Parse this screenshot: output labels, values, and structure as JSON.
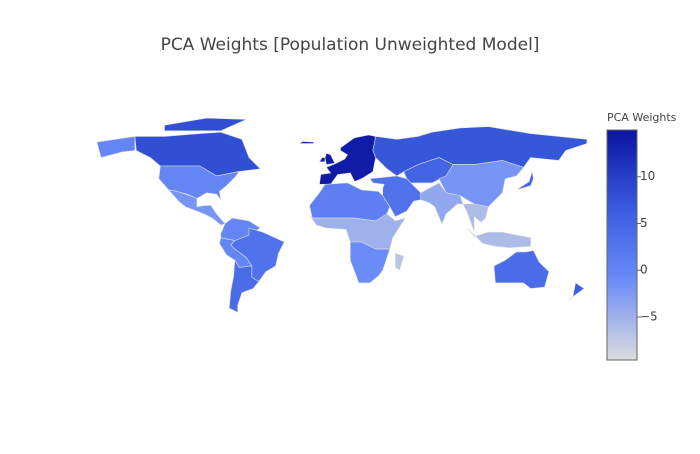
{
  "chart_data": {
    "type": "choropleth",
    "title": "PCA Weights [Population Unweighted Model]",
    "colorbar_title": "PCA Weights",
    "values": [
      8,
      8,
      0,
      0,
      -2,
      0,
      3,
      0,
      4,
      14,
      14,
      14,
      13,
      7,
      5,
      -2,
      -4,
      3,
      -6,
      -6,
      1,
      -5,
      -1,
      -7,
      4,
      6,
      5
    ],
    "zlim": [
      -9.6,
      15
    ],
    "zticks": [
      {
        "value": -5,
        "label": "−5"
      },
      0,
      5,
      10
    ],
    "colorscale": [
      [
        0,
        "#dcdcdc"
      ],
      [
        0.35,
        "#6a8cf8"
      ],
      [
        0.65,
        "#3a5ce0"
      ],
      [
        1,
        "#0a14a0"
      ]
    ]
  }
}
